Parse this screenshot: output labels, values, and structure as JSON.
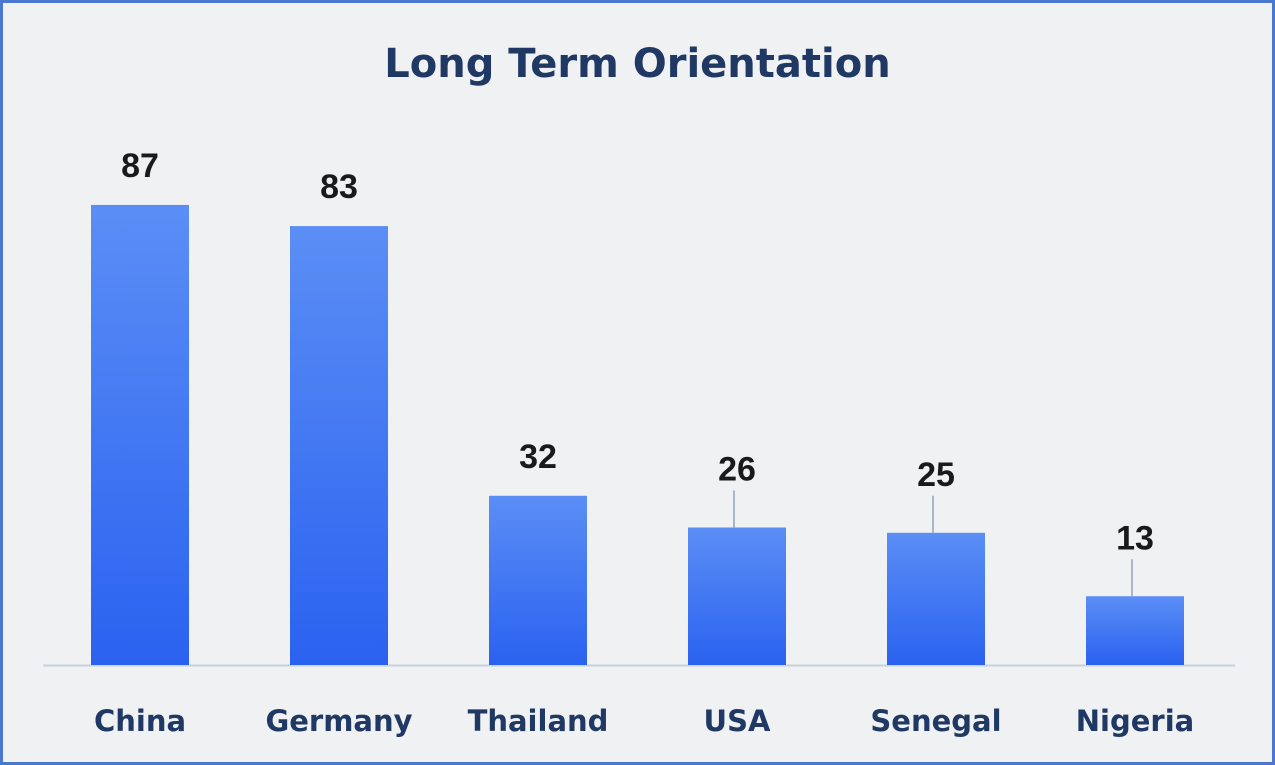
{
  "chart_data": {
    "type": "bar",
    "title": "Long Term Orientation",
    "categories": [
      "China",
      "Germany",
      "Thailand",
      "USA",
      "Senegal",
      "Nigeria"
    ],
    "values": [
      87,
      83,
      32,
      26,
      25,
      13
    ],
    "xlabel": "",
    "ylabel": "",
    "ylim": [
      0,
      100
    ],
    "grid": false,
    "legend": "none",
    "colors": {
      "bar_top": "#5b8ef5",
      "bar_bottom": "#2a62f0",
      "axis": "#c6d3dc",
      "leader_line": "#a9b6c9",
      "title": "#1f3864",
      "category_label": "#1f3864",
      "data_label": "#1a1a1a",
      "background": "#eff1f2",
      "border": "#4a78d0"
    }
  }
}
